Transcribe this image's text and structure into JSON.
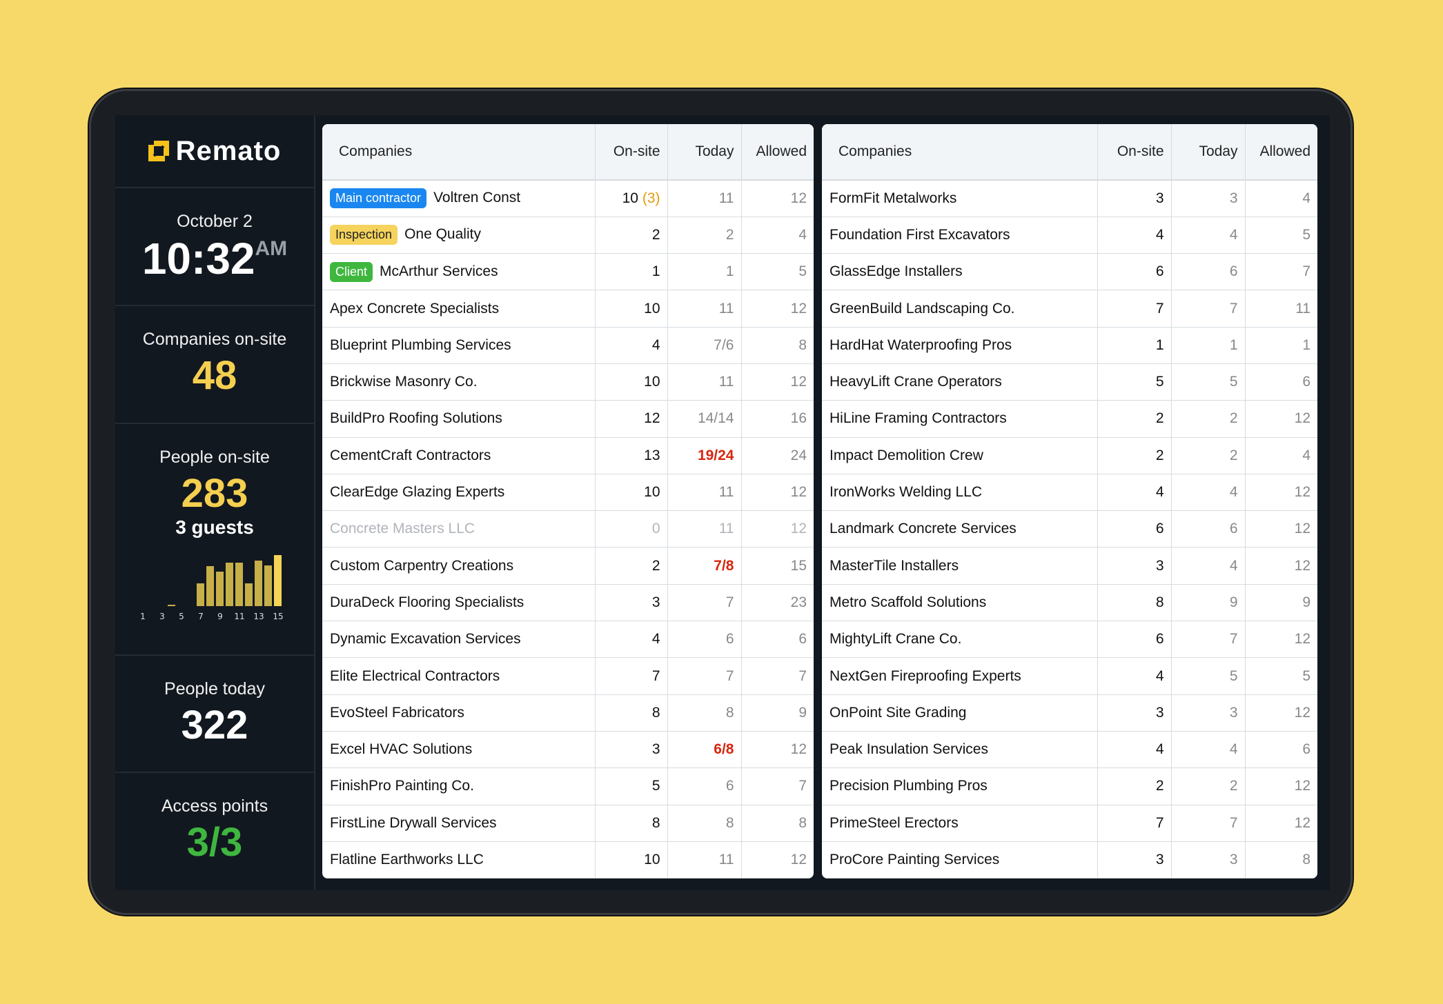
{
  "brand": {
    "name": "Remato",
    "accent": "#f5c21b"
  },
  "sidebar": {
    "date": "October 2",
    "time": "10:32",
    "ampm": "AM",
    "companies_label": "Companies on-site",
    "companies_value": "48",
    "people_label": "People on-site",
    "people_value": "283",
    "guests": "3 guests",
    "hourly": {
      "hours": [
        1,
        2,
        3,
        4,
        5,
        6,
        7,
        8,
        9,
        10,
        11,
        12,
        13,
        14,
        15
      ],
      "values": [
        0,
        0,
        0,
        2,
        0,
        0,
        26,
        46,
        40,
        50,
        50,
        26,
        53,
        47,
        59
      ],
      "tick_labels": [
        "1",
        "3",
        "5",
        "7",
        "9",
        "11",
        "13",
        "15"
      ]
    },
    "today_label": "People today",
    "today_value": "322",
    "access_label": "Access points",
    "access_value": "3/3"
  },
  "columns": {
    "companies": "Companies",
    "onsite": "On-site",
    "today": "Today",
    "allowed": "Allowed"
  },
  "badge_colors": {
    "Main contractor": "#1a87f0",
    "Inspection": "#f5d35c",
    "Client": "#3fb73f"
  },
  "left_rows": [
    {
      "badge": "Main contractor",
      "name": "Voltren Const",
      "onsite": "10",
      "onsite_extra": "(3)",
      "today": "11",
      "allowed": "12"
    },
    {
      "badge": "Inspection",
      "name": "One Quality",
      "onsite": "2",
      "today": "2",
      "allowed": "4"
    },
    {
      "badge": "Client",
      "name": "McArthur Services",
      "onsite": "1",
      "today": "1",
      "allowed": "5"
    },
    {
      "name": "Apex Concrete Specialists",
      "onsite": "10",
      "today": "11",
      "allowed": "12"
    },
    {
      "name": "Blueprint Plumbing Services",
      "onsite": "4",
      "today": "7/6",
      "allowed": "8"
    },
    {
      "name": "Brickwise Masonry Co.",
      "onsite": "10",
      "today": "11",
      "allowed": "12"
    },
    {
      "name": "BuildPro Roofing Solutions",
      "onsite": "12",
      "today": "14/14",
      "allowed": "16"
    },
    {
      "name": "CementCraft Contractors",
      "onsite": "13",
      "today": "19/24",
      "allowed": "24",
      "alert": true
    },
    {
      "name": "ClearEdge Glazing Experts",
      "onsite": "10",
      "today": "11",
      "allowed": "12"
    },
    {
      "name": "Concrete Masters LLC",
      "onsite": "0",
      "today": "11",
      "allowed": "12",
      "inactive": true
    },
    {
      "name": "Custom Carpentry Creations",
      "onsite": "2",
      "today": "7/8",
      "allowed": "15",
      "alert": true
    },
    {
      "name": "DuraDeck Flooring Specialists",
      "onsite": "3",
      "today": "7",
      "allowed": "23"
    },
    {
      "name": "Dynamic Excavation Services",
      "onsite": "4",
      "today": "6",
      "allowed": "6"
    },
    {
      "name": "Elite Electrical Contractors",
      "onsite": "7",
      "today": "7",
      "allowed": "7"
    },
    {
      "name": "EvoSteel Fabricators",
      "onsite": "8",
      "today": "8",
      "allowed": "9"
    },
    {
      "name": "Excel HVAC Solutions",
      "onsite": "3",
      "today": "6/8",
      "allowed": "12",
      "alert": true
    },
    {
      "name": "FinishPro Painting Co.",
      "onsite": "5",
      "today": "6",
      "allowed": "7"
    },
    {
      "name": "FirstLine Drywall Services",
      "onsite": "8",
      "today": "8",
      "allowed": "8"
    },
    {
      "name": "Flatline Earthworks LLC",
      "onsite": "10",
      "today": "11",
      "allowed": "12"
    }
  ],
  "right_rows": [
    {
      "name": "FormFit Metalworks",
      "onsite": "3",
      "today": "3",
      "allowed": "4"
    },
    {
      "name": "Foundation First Excavators",
      "onsite": "4",
      "today": "4",
      "allowed": "5"
    },
    {
      "name": "GlassEdge Installers",
      "onsite": "6",
      "today": "6",
      "allowed": "7"
    },
    {
      "name": "GreenBuild Landscaping Co.",
      "onsite": "7",
      "today": "7",
      "allowed": "11"
    },
    {
      "name": "HardHat Waterproofing Pros",
      "onsite": "1",
      "today": "1",
      "allowed": "1"
    },
    {
      "name": "HeavyLift Crane Operators",
      "onsite": "5",
      "today": "5",
      "allowed": "6"
    },
    {
      "name": "HiLine Framing Contractors",
      "onsite": "2",
      "today": "2",
      "allowed": "12"
    },
    {
      "name": "Impact Demolition Crew",
      "onsite": "2",
      "today": "2",
      "allowed": "4"
    },
    {
      "name": "IronWorks Welding LLC",
      "onsite": "4",
      "today": "4",
      "allowed": "12"
    },
    {
      "name": "Landmark Concrete Services",
      "onsite": "6",
      "today": "6",
      "allowed": "12"
    },
    {
      "name": "MasterTile Installers",
      "onsite": "3",
      "today": "4",
      "allowed": "12"
    },
    {
      "name": "Metro Scaffold Solutions",
      "onsite": "8",
      "today": "9",
      "allowed": "9"
    },
    {
      "name": "MightyLift Crane Co.",
      "onsite": "6",
      "today": "7",
      "allowed": "12"
    },
    {
      "name": "NextGen Fireproofing Experts",
      "onsite": "4",
      "today": "5",
      "allowed": "5"
    },
    {
      "name": "OnPoint Site Grading",
      "onsite": "3",
      "today": "3",
      "allowed": "12"
    },
    {
      "name": "Peak Insulation Services",
      "onsite": "4",
      "today": "4",
      "allowed": "6"
    },
    {
      "name": "Precision Plumbing Pros",
      "onsite": "2",
      "today": "2",
      "allowed": "12"
    },
    {
      "name": "PrimeSteel Erectors",
      "onsite": "7",
      "today": "7",
      "allowed": "12"
    },
    {
      "name": "ProCore Painting Services",
      "onsite": "3",
      "today": "3",
      "allowed": "8"
    }
  ]
}
